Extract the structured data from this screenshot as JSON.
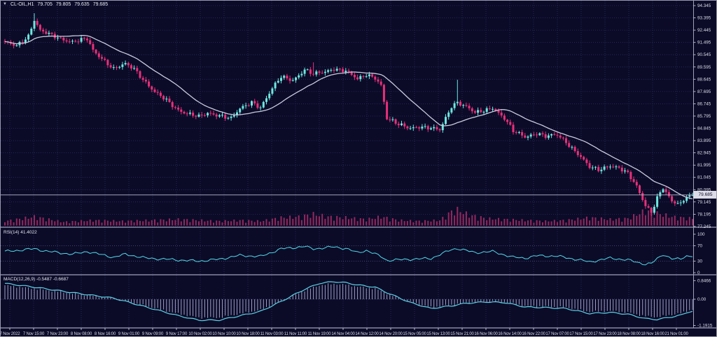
{
  "window": {
    "kind": "metatrader-chart",
    "theme_colors": {
      "background": "#0b0b28",
      "grid": "#2c2c5c",
      "candle_up": "#6ee7df",
      "candle_down": "#e7307a",
      "ma_line": "#cacade",
      "volume": "#93285f",
      "rsi_line": "#52dbe9",
      "macd_line": "#5cd3e6",
      "macd_histogram": "#9f9fc9",
      "separator": "#a0a0ba",
      "axis_text": "#dcdce8",
      "current_price_line": "#b9b9cf",
      "price_tag_bg": "#dcdce8",
      "price_tag_text": "#0b0b28"
    }
  },
  "chart_data": {
    "type": "candlestick",
    "info": {
      "symbol_tf": "CL-OIL,H1",
      "open": "79.705",
      "high": "79.805",
      "low": "79.635",
      "close": "79.685"
    },
    "bars": 235,
    "price_axis": {
      "labels": [
        "94.345",
        "93.395",
        "92.445",
        "91.495",
        "90.545",
        "89.595",
        "88.645",
        "87.695",
        "86.745",
        "85.795",
        "84.845",
        "83.895",
        "82.945",
        "81.995",
        "81.045",
        "80.095",
        "79.145",
        "78.195",
        "77.245"
      ],
      "max": 94.345,
      "min": 77.245,
      "step": 0.95,
      "current": "79.685",
      "current_value": 79.685
    },
    "time_axis": {
      "labels": [
        "7 Nov 2022",
        "7 Nov 15:00",
        "7 Nov 23:00",
        "8 Nov 08:00",
        "8 Nov 16:00",
        "9 Nov 01:00",
        "9 Nov 09:00",
        "9 Nov 17:00",
        "10 Nov 02:00",
        "10 Nov 10:00",
        "10 Nov 18:00",
        "11 Nov 03:00",
        "11 Nov 11:00",
        "11 Nov 19:00",
        "14 Nov 04:00",
        "14 Nov 12:00",
        "14 Nov 20:00",
        "15 Nov 05:00",
        "15 Nov 13:00",
        "15 Nov 21:00",
        "16 Nov 06:00",
        "16 Nov 14:00",
        "16 Nov 22:00",
        "17 Nov 07:00",
        "17 Nov 15:00",
        "17 Nov 23:00",
        "18 Nov 08:00",
        "18 Nov 16:00",
        "21 Nov 01:00"
      ]
    },
    "candles": {
      "ma_period": 20,
      "close_anchors": [
        [
          0,
          91.45
        ],
        [
          4,
          91.3
        ],
        [
          8,
          92.0
        ],
        [
          10,
          93.2
        ],
        [
          12,
          92.35
        ],
        [
          17,
          92.0
        ],
        [
          23,
          91.5
        ],
        [
          28,
          91.75
        ],
        [
          30,
          90.9
        ],
        [
          33,
          90.3
        ],
        [
          37,
          89.4
        ],
        [
          41,
          89.8
        ],
        [
          44,
          89.5
        ],
        [
          48,
          88.4
        ],
        [
          51,
          87.6
        ],
        [
          55,
          87.0
        ],
        [
          59,
          86.3
        ],
        [
          62,
          86.0
        ],
        [
          66,
          85.7
        ],
        [
          69,
          86.0
        ],
        [
          73,
          85.9
        ],
        [
          77,
          85.6
        ],
        [
          80,
          86.3
        ],
        [
          84,
          86.9
        ],
        [
          87,
          86.5
        ],
        [
          91,
          87.9
        ],
        [
          94,
          88.8
        ],
        [
          98,
          88.6
        ],
        [
          102,
          89.4
        ],
        [
          105,
          89.0
        ],
        [
          109,
          89.2
        ],
        [
          112,
          89.5
        ],
        [
          116,
          89.3
        ],
        [
          120,
          88.6
        ],
        [
          123,
          89.0
        ],
        [
          126,
          88.8
        ],
        [
          128,
          88.2
        ],
        [
          130,
          85.6
        ],
        [
          134,
          85.1
        ],
        [
          138,
          84.9
        ],
        [
          141,
          85.0
        ],
        [
          145,
          84.8
        ],
        [
          148,
          84.7
        ],
        [
          152,
          86.6
        ],
        [
          154,
          86.9
        ],
        [
          157,
          86.5
        ],
        [
          160,
          86.0
        ],
        [
          164,
          86.3
        ],
        [
          166,
          86.5
        ],
        [
          170,
          85.6
        ],
        [
          173,
          84.6
        ],
        [
          177,
          84.2
        ],
        [
          181,
          84.5
        ],
        [
          184,
          84.2
        ],
        [
          188,
          84.3
        ],
        [
          191,
          83.8
        ],
        [
          195,
          82.9
        ],
        [
          199,
          81.8
        ],
        [
          202,
          81.6
        ],
        [
          206,
          82.0
        ],
        [
          209,
          81.8
        ],
        [
          212,
          81.3
        ],
        [
          215,
          80.3
        ],
        [
          218,
          78.9
        ],
        [
          220,
          78.4
        ],
        [
          222,
          79.5
        ],
        [
          224,
          80.2
        ],
        [
          227,
          79.1
        ],
        [
          230,
          79.0
        ],
        [
          232,
          79.6
        ],
        [
          234,
          79.685
        ]
      ],
      "spikes": [
        {
          "i": 10,
          "high": 93.75
        },
        {
          "i": 105,
          "high": 89.95
        },
        {
          "i": 154,
          "high": 88.6
        },
        {
          "i": 220,
          "low": 78.05
        }
      ]
    },
    "volume": {
      "anchors": [
        [
          0,
          0.25
        ],
        [
          10,
          0.5
        ],
        [
          20,
          0.2
        ],
        [
          30,
          0.3
        ],
        [
          40,
          0.25
        ],
        [
          50,
          0.3
        ],
        [
          59,
          0.35
        ],
        [
          66,
          0.3
        ],
        [
          73,
          0.25
        ],
        [
          80,
          0.3
        ],
        [
          87,
          0.25
        ],
        [
          94,
          0.45
        ],
        [
          100,
          0.5
        ],
        [
          105,
          0.65
        ],
        [
          110,
          0.5
        ],
        [
          116,
          0.45
        ],
        [
          123,
          0.35
        ],
        [
          128,
          0.5
        ],
        [
          134,
          0.3
        ],
        [
          141,
          0.25
        ],
        [
          148,
          0.3
        ],
        [
          152,
          0.8
        ],
        [
          154,
          0.9
        ],
        [
          158,
          0.6
        ],
        [
          164,
          0.4
        ],
        [
          170,
          0.35
        ],
        [
          177,
          0.3
        ],
        [
          184,
          0.25
        ],
        [
          191,
          0.3
        ],
        [
          199,
          0.45
        ],
        [
          206,
          0.35
        ],
        [
          212,
          0.4
        ],
        [
          218,
          0.85
        ],
        [
          222,
          0.7
        ],
        [
          227,
          0.5
        ],
        [
          230,
          0.45
        ],
        [
          234,
          0.4
        ]
      ]
    },
    "rsi": {
      "label": "RSI(14) 41.4022",
      "period": 14,
      "value": 41.4022,
      "scale_labels": [
        "100",
        "70",
        "30",
        "0"
      ],
      "levels": [
        70,
        30
      ],
      "anchors": [
        [
          0,
          55
        ],
        [
          10,
          62
        ],
        [
          15,
          55
        ],
        [
          23,
          48
        ],
        [
          28,
          55
        ],
        [
          37,
          40
        ],
        [
          41,
          48
        ],
        [
          48,
          38
        ],
        [
          59,
          33
        ],
        [
          66,
          30
        ],
        [
          73,
          35
        ],
        [
          80,
          45
        ],
        [
          87,
          42
        ],
        [
          94,
          62
        ],
        [
          102,
          68
        ],
        [
          105,
          62
        ],
        [
          112,
          67
        ],
        [
          116,
          63
        ],
        [
          120,
          52
        ],
        [
          123,
          58
        ],
        [
          128,
          42
        ],
        [
          130,
          32
        ],
        [
          138,
          35
        ],
        [
          145,
          37
        ],
        [
          152,
          60
        ],
        [
          154,
          63
        ],
        [
          160,
          52
        ],
        [
          166,
          55
        ],
        [
          173,
          40
        ],
        [
          177,
          38
        ],
        [
          181,
          44
        ],
        [
          188,
          43
        ],
        [
          195,
          34
        ],
        [
          199,
          28
        ],
        [
          206,
          38
        ],
        [
          212,
          33
        ],
        [
          218,
          22
        ],
        [
          220,
          24
        ],
        [
          224,
          48
        ],
        [
          227,
          36
        ],
        [
          230,
          35
        ],
        [
          232,
          44
        ],
        [
          234,
          41.4
        ]
      ]
    },
    "macd": {
      "label": "MACD(12,26,9) -0.5487 -0.6687",
      "main_value": -0.5487,
      "signal_value": -0.6687,
      "scale_labels": [
        "0.8466",
        "0.00",
        "-1.1915"
      ],
      "scale_top": 0.8466,
      "scale_mid": 0.0,
      "scale_bottom": -1.1915,
      "anchors": [
        [
          0,
          0.72
        ],
        [
          10,
          0.55
        ],
        [
          23,
          0.3
        ],
        [
          37,
          0.05
        ],
        [
          48,
          -0.35
        ],
        [
          59,
          -0.75
        ],
        [
          66,
          -0.95
        ],
        [
          73,
          -0.95
        ],
        [
          80,
          -0.75
        ],
        [
          87,
          -0.55
        ],
        [
          94,
          -0.1
        ],
        [
          102,
          0.45
        ],
        [
          107,
          0.72
        ],
        [
          112,
          0.8
        ],
        [
          116,
          0.75
        ],
        [
          120,
          0.65
        ],
        [
          126,
          0.55
        ],
        [
          130,
          0.3
        ],
        [
          138,
          -0.15
        ],
        [
          145,
          -0.42
        ],
        [
          152,
          -0.3
        ],
        [
          157,
          -0.18
        ],
        [
          164,
          -0.12
        ],
        [
          170,
          -0.15
        ],
        [
          177,
          -0.35
        ],
        [
          184,
          -0.38
        ],
        [
          191,
          -0.42
        ],
        [
          199,
          -0.65
        ],
        [
          206,
          -0.6
        ],
        [
          212,
          -0.68
        ],
        [
          218,
          -0.88
        ],
        [
          222,
          -0.92
        ],
        [
          227,
          -0.8
        ],
        [
          230,
          -0.72
        ],
        [
          232,
          -0.62
        ],
        [
          234,
          -0.5487
        ]
      ]
    }
  }
}
